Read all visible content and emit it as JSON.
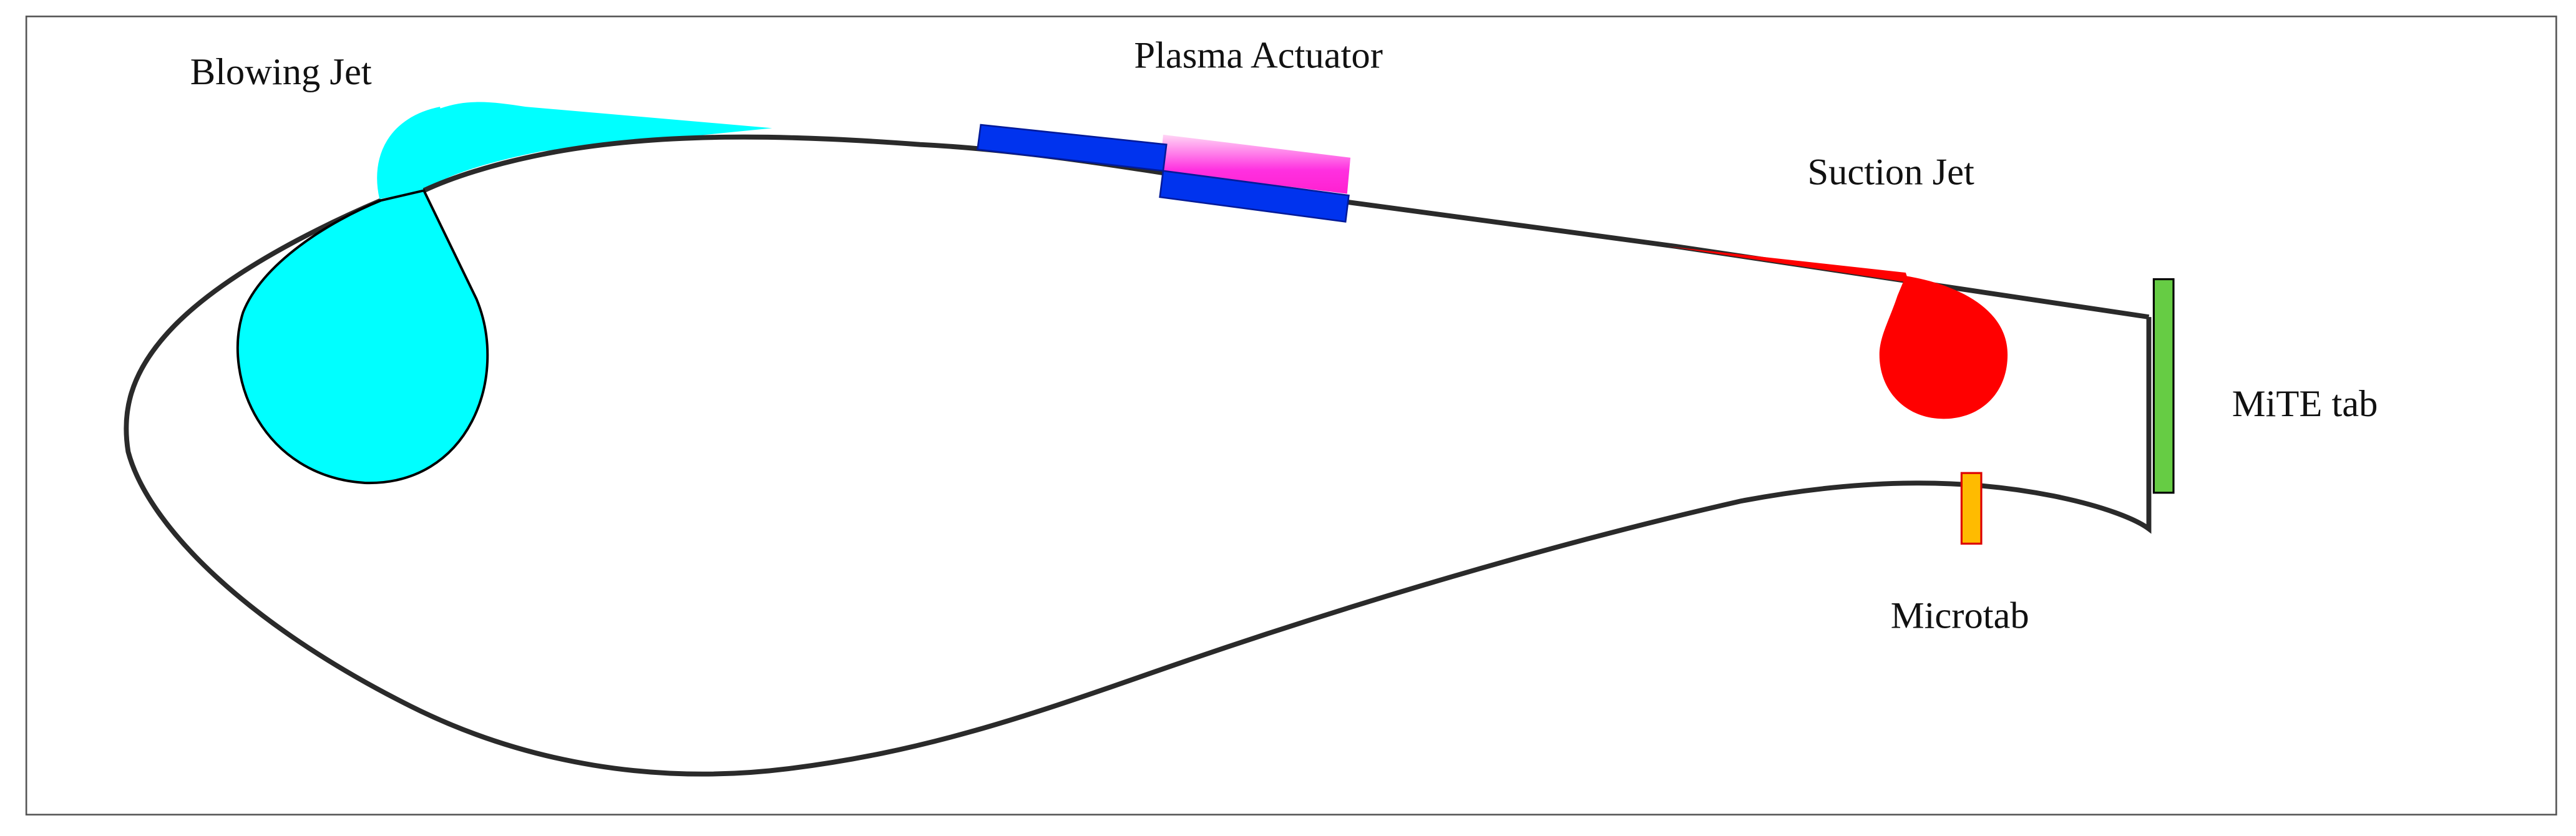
{
  "labels": [
    "Blowing Jet",
    "Plasma Actuator",
    "Suction Jet",
    "MiTE tab",
    "Microtab"
  ]
}
